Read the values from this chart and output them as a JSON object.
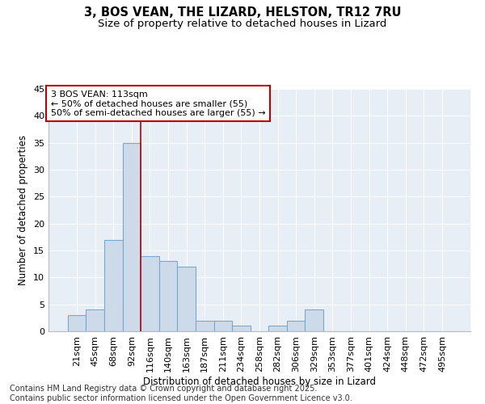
{
  "title": "3, BOS VEAN, THE LIZARD, HELSTON, TR12 7RU",
  "subtitle": "Size of property relative to detached houses in Lizard",
  "xlabel": "Distribution of detached houses by size in Lizard",
  "ylabel": "Number of detached properties",
  "bar_color": "#ccdaea",
  "bar_edge_color": "#7aaac8",
  "background_color": "#e8eef6",
  "grid_color": "#ffffff",
  "categories": [
    "21sqm",
    "45sqm",
    "68sqm",
    "92sqm",
    "116sqm",
    "140sqm",
    "163sqm",
    "187sqm",
    "211sqm",
    "234sqm",
    "258sqm",
    "282sqm",
    "306sqm",
    "329sqm",
    "353sqm",
    "377sqm",
    "401sqm",
    "424sqm",
    "448sqm",
    "472sqm",
    "495sqm"
  ],
  "values": [
    3,
    4,
    17,
    35,
    14,
    13,
    12,
    2,
    2,
    1,
    0,
    1,
    2,
    4,
    0,
    0,
    0,
    0,
    0,
    0,
    0
  ],
  "ylim": [
    0,
    45
  ],
  "yticks": [
    0,
    5,
    10,
    15,
    20,
    25,
    30,
    35,
    40,
    45
  ],
  "annotation_text": "3 BOS VEAN: 113sqm\n← 50% of detached houses are smaller (55)\n50% of semi-detached houses are larger (55) →",
  "vline_x": 4,
  "vline_color": "#bb0000",
  "annotation_box_edge_color": "#bb0000",
  "footer_text": "Contains HM Land Registry data © Crown copyright and database right 2025.\nContains public sector information licensed under the Open Government Licence v3.0.",
  "title_fontsize": 10.5,
  "subtitle_fontsize": 9.5,
  "annotation_fontsize": 8,
  "footer_fontsize": 7,
  "axis_label_fontsize": 8.5,
  "tick_fontsize": 8
}
